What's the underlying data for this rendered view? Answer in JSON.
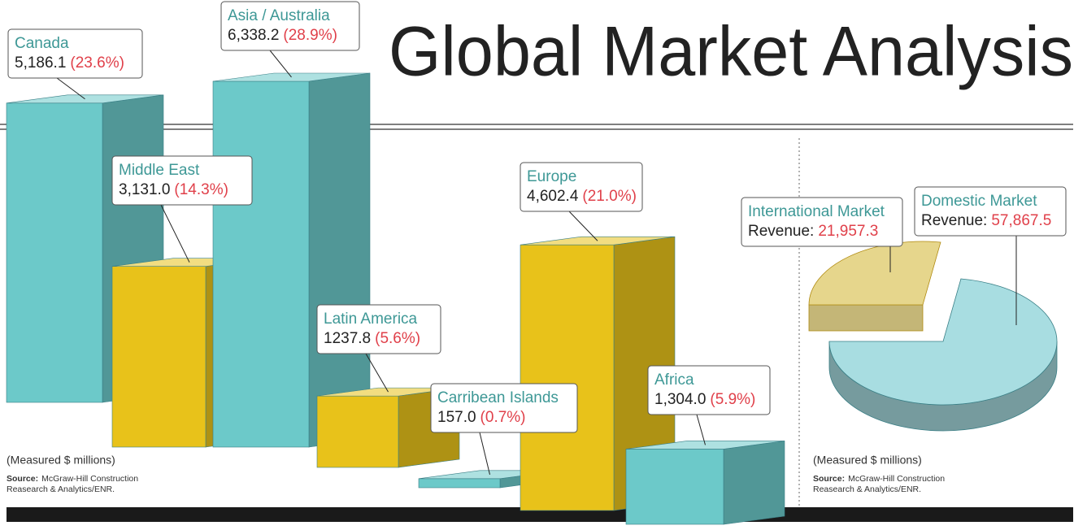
{
  "chart_data": [
    {
      "type": "bar3d",
      "title": "Global Market Analysis",
      "categories": [
        "Canada",
        "Middle East",
        "Asia / Australia",
        "Latin America",
        "Carribean Islands",
        "Europe",
        "Africa"
      ],
      "values": [
        5186.1,
        3131.0,
        6338.2,
        1237.8,
        157.0,
        4602.4,
        1304.0
      ],
      "value_labels": [
        "5,186.1",
        "3,131.0",
        "6,338.2",
        "1237.8",
        "157.0",
        "4,602.4",
        "1,304.0"
      ],
      "share_labels": [
        "(23.6%)",
        "(14.3%)",
        "(28.9%)",
        "(5.6%)",
        "(0.7%)",
        "(21.0%)",
        "(5.9%)"
      ],
      "colors": [
        "#6cc9c9",
        "#e8c21a",
        "#6cc9c9",
        "#e8c21a",
        "#6cc9c9",
        "#e8c21a",
        "#6cc9c9"
      ],
      "note": "(Measured $ millions)",
      "source_label": "Source:",
      "source_lines": [
        "McGraw-Hill Construction",
        "Reasearch & Analytics/ENR."
      ]
    },
    {
      "type": "pie3d",
      "categories": [
        "International Market",
        "Domestic Market"
      ],
      "values": [
        21957.3,
        57867.5
      ],
      "value_labels": [
        "21,957.3",
        "57,867.5"
      ],
      "value_prefix": "Revenue:",
      "colors": [
        "#e6d68c",
        "#a8dde1"
      ],
      "note": "(Measured $ millions)",
      "source_label": "Source:",
      "source_lines": [
        "McGraw-Hill Construction",
        "Reasearch & Analytics/ENR."
      ]
    }
  ]
}
